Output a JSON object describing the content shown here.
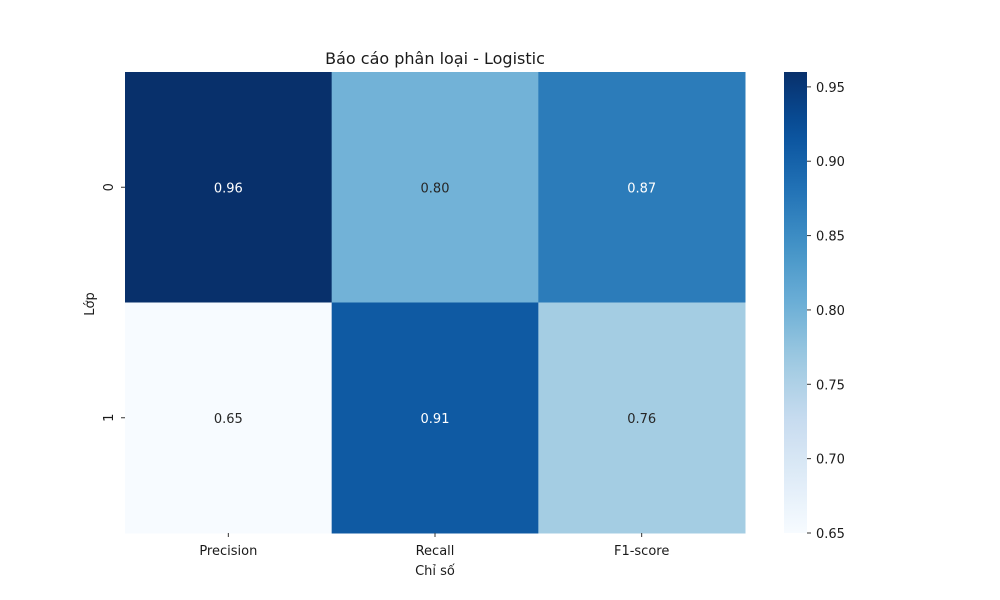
{
  "chart_data": {
    "type": "heatmap",
    "title": "Báo cáo phân loại - Logistic",
    "xlabel": "Chỉ số",
    "ylabel": "Lớp",
    "x_categories": [
      "Precision",
      "Recall",
      "F1-score"
    ],
    "y_categories": [
      "0",
      "1"
    ],
    "values": [
      [
        0.96,
        0.8,
        0.87
      ],
      [
        0.65,
        0.91,
        0.76
      ]
    ],
    "value_labels": [
      [
        "0.96",
        "0.80",
        "0.87"
      ],
      [
        "0.65",
        "0.91",
        "0.76"
      ]
    ],
    "colormap": "Blues",
    "color_range": [
      0.65,
      0.96
    ],
    "colorbar": {
      "ticks": [
        0.65,
        0.7,
        0.75,
        0.8,
        0.85,
        0.9,
        0.95
      ],
      "tick_labels": [
        "0.65",
        "0.70",
        "0.75",
        "0.80",
        "0.85",
        "0.90",
        "0.95"
      ]
    },
    "grid": false
  }
}
